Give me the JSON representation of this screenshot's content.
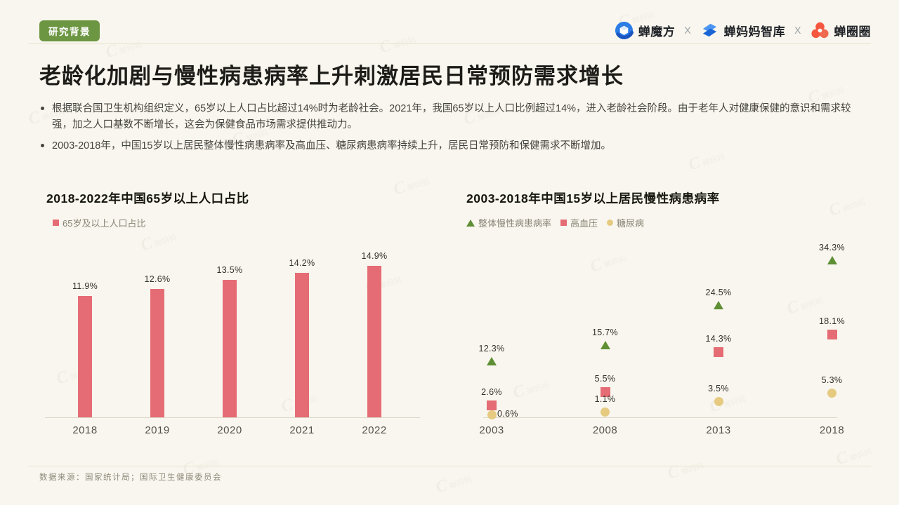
{
  "header": {
    "badge": "研究背景",
    "logos": [
      "蝉魔方",
      "蝉妈妈智库",
      "蝉圈圈"
    ],
    "separator": "X"
  },
  "title": "老龄化加剧与慢性病患病率上升刺激居民日常预防需求增长",
  "bullets": [
    "根据联合国卫生机构组织定义，65岁以上人口占比超过14%时为老龄社会。2021年，我国65岁以上人口比例超过14%，进入老龄社会阶段。由于老年人对健康保健的意识和需求较强，加之人口基数不断增长，这会为保健食品市场需求提供推动力。",
    "2003-2018年，中国15岁以上居民整体慢性病患病率及高血压、糖尿病患病率持续上升，居民日常预防和保健需求不断增加。"
  ],
  "footer": {
    "source": "数据来源：国家统计局；国际卫生健康委员会"
  },
  "watermark": {
    "text": "蝉妈妈"
  },
  "colors": {
    "background": "#f8f6ee",
    "badge_green": "#6d9642",
    "bar_red": "#e56c74",
    "series_green": "#5f8f34",
    "series_yellow": "#e5ca80",
    "logo_blue": "#2b7ce5",
    "logo_deep_blue": "#1b66d6",
    "logo_orange": "#f4563e"
  },
  "chart_data": [
    {
      "type": "bar",
      "title": "2018-2022年中国65岁以上人口占比",
      "legend": [
        "65岁及以上人口占比"
      ],
      "categories": [
        "2018",
        "2019",
        "2020",
        "2021",
        "2022"
      ],
      "values": [
        11.9,
        12.6,
        13.5,
        14.2,
        14.9
      ],
      "unit": "%",
      "xlabel": "",
      "ylabel": "",
      "ylim": [
        0,
        16
      ],
      "grid": false,
      "legend_position": "top-left",
      "bar_color": "#e56c74"
    },
    {
      "type": "scatter",
      "title": "2003-2018年中国15岁以上居民慢性病患病率",
      "categories": [
        "2003",
        "2008",
        "2013",
        "2018"
      ],
      "series": [
        {
          "name": "整体慢性病患病率",
          "marker": "triangle",
          "color": "#5f8f34",
          "values": [
            12.3,
            15.7,
            24.5,
            34.3
          ]
        },
        {
          "name": "高血压",
          "marker": "square",
          "color": "#e56c74",
          "values": [
            2.6,
            5.5,
            14.3,
            18.1
          ]
        },
        {
          "name": "糖尿病",
          "marker": "circle",
          "color": "#e5ca80",
          "values": [
            0.6,
            1.1,
            3.5,
            5.3
          ]
        }
      ],
      "unit": "%",
      "xlabel": "",
      "ylabel": "",
      "ylim": [
        0,
        39
      ],
      "grid": false,
      "legend_position": "top-left"
    }
  ]
}
